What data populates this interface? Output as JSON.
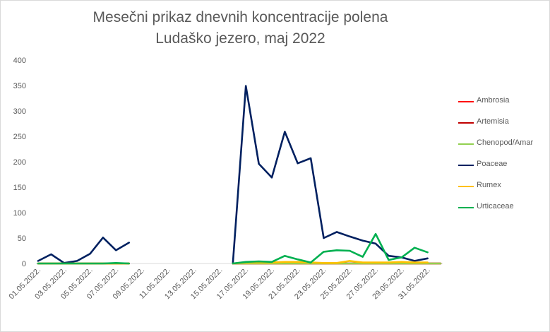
{
  "chart_data": {
    "type": "line",
    "title": "Mesečni prikaz dnevnih koncentracije polena",
    "subtitle": "Ludaško jezero, maj 2022",
    "xlabel": "",
    "ylabel": "",
    "ylim": [
      0,
      400
    ],
    "yticks": [
      0,
      50,
      100,
      150,
      200,
      250,
      300,
      350,
      400
    ],
    "grid": false,
    "legend_position": "right",
    "x": [
      "01.05.2022.",
      "02.05.2022.",
      "03.05.2022.",
      "04.05.2022.",
      "05.05.2022.",
      "06.05.2022.",
      "07.05.2022.",
      "08.05.2022.",
      "09.05.2022.",
      "10.05.2022.",
      "11.05.2022.",
      "12.05.2022.",
      "13.05.2022.",
      "14.05.2022.",
      "15.05.2022.",
      "16.05.2022.",
      "17.05.2022.",
      "18.05.2022.",
      "19.05.2022.",
      "20.05.2022.",
      "21.05.2022.",
      "22.05.2022.",
      "23.05.2022.",
      "24.05.2022.",
      "25.05.2022.",
      "26.05.2022.",
      "27.05.2022.",
      "28.05.2022.",
      "29.05.2022.",
      "30.05.2022.",
      "31.05.2022.",
      "01.06.2022."
    ],
    "xtick_labels": [
      "01.05.2022.",
      "03.05.2022.",
      "05.05.2022.",
      "07.05.2022.",
      "09.05.2022.",
      "11.05.2022.",
      "13.05.2022.",
      "15.05.2022.",
      "17.05.2022.",
      "19.05.2022.",
      "21.05.2022.",
      "23.05.2022.",
      "25.05.2022.",
      "27.05.2022.",
      "29.05.2022.",
      "31.05.2022."
    ],
    "series": [
      {
        "name": "Ambrosia",
        "color": "#ff0000",
        "values": [
          0,
          0,
          0,
          0,
          0,
          0,
          0,
          0,
          null,
          null,
          null,
          null,
          null,
          null,
          null,
          0,
          0,
          0,
          0,
          0,
          0,
          0,
          0,
          0,
          0,
          0,
          0,
          0,
          0,
          0,
          0,
          0
        ]
      },
      {
        "name": "Artemisia",
        "color": "#c00000",
        "values": [
          0,
          0,
          0,
          0,
          0,
          0,
          0,
          0,
          null,
          null,
          null,
          null,
          null,
          null,
          null,
          0,
          0,
          0,
          0,
          0,
          0,
          0,
          0,
          0,
          0,
          0,
          0,
          0,
          0,
          0,
          0,
          0
        ]
      },
      {
        "name": "Chenopod/Amar",
        "color": "#92d050",
        "values": [
          0,
          0,
          0,
          0,
          0,
          0,
          0,
          0,
          null,
          null,
          null,
          null,
          null,
          null,
          null,
          0,
          0,
          0,
          0,
          0,
          0,
          0,
          0,
          0,
          0,
          0,
          0,
          0,
          0,
          0,
          0,
          0
        ]
      },
      {
        "name": "Poaceae",
        "color": "#002060",
        "values": [
          5,
          18,
          1,
          5,
          19,
          51,
          26,
          41,
          null,
          null,
          null,
          null,
          null,
          null,
          null,
          0,
          349,
          196,
          169,
          259,
          197,
          207,
          50,
          62,
          53,
          45,
          39,
          15,
          12,
          5,
          10,
          null
        ]
      },
      {
        "name": "Rumex",
        "color": "#ffc000",
        "values": [
          0,
          0,
          0,
          0,
          0,
          0,
          0,
          0,
          null,
          null,
          null,
          null,
          null,
          null,
          null,
          0,
          2,
          2,
          2,
          3,
          3,
          2,
          1,
          1,
          5,
          2,
          2,
          2,
          3,
          2,
          2,
          null
        ]
      },
      {
        "name": "Urticaceae",
        "color": "#00b050",
        "values": [
          0,
          0,
          0,
          0,
          0,
          0,
          1,
          0,
          null,
          null,
          null,
          null,
          null,
          null,
          null,
          0,
          3,
          4,
          3,
          15,
          8,
          2,
          23,
          26,
          25,
          13,
          58,
          7,
          12,
          31,
          22,
          null
        ]
      }
    ]
  }
}
